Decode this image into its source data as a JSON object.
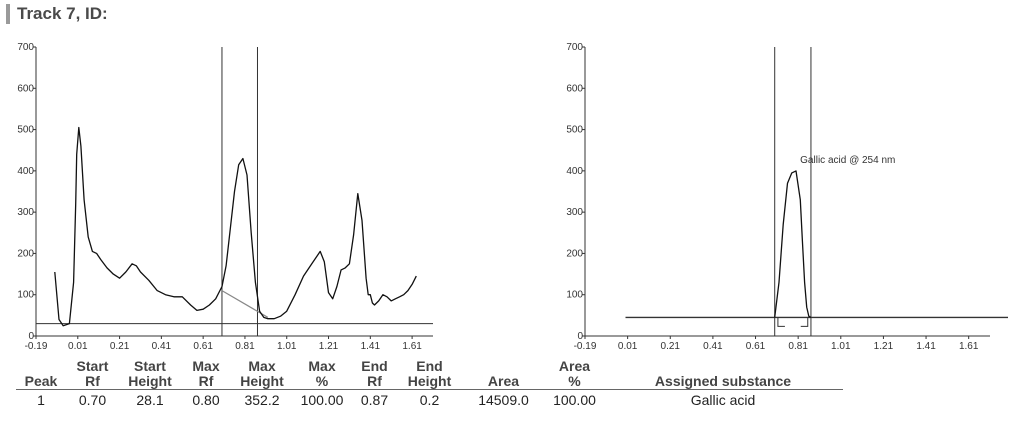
{
  "header": {
    "title": "Track 7, ID:"
  },
  "chart_data": [
    {
      "type": "line",
      "xlim": [
        -0.19,
        1.71
      ],
      "ylim": [
        0,
        700
      ],
      "x_ticks": [
        "-0.19",
        "0.01",
        "0.21",
        "0.41",
        "0.61",
        "0.81",
        "1.01",
        "1.21",
        "1.41",
        "1.61"
      ],
      "y_ticks": [
        "0",
        "100",
        "200",
        "300",
        "400",
        "500",
        "600",
        "700"
      ],
      "baseline_y": 30,
      "peak_window": [
        0.7,
        0.87
      ],
      "peak_baseline": [
        [
          0.7,
          110
        ],
        [
          0.92,
          45
        ]
      ],
      "series": [
        {
          "x": [
            -0.1,
            -0.08,
            -0.06,
            -0.03,
            -0.01,
            0.0,
            0.005,
            0.015,
            0.025,
            0.04,
            0.06,
            0.08,
            0.1,
            0.12,
            0.15,
            0.18,
            0.21,
            0.24,
            0.27,
            0.29,
            0.31,
            0.35,
            0.39,
            0.43,
            0.47,
            0.51,
            0.55,
            0.58,
            0.61,
            0.64,
            0.67,
            0.7,
            0.72,
            0.74,
            0.76,
            0.78,
            0.8,
            0.82,
            0.84,
            0.86,
            0.88,
            0.9,
            0.92,
            0.95,
            0.98,
            1.01,
            1.05,
            1.09,
            1.13,
            1.17,
            1.19,
            1.21,
            1.23,
            1.25,
            1.27,
            1.29,
            1.31,
            1.33,
            1.35,
            1.37,
            1.39,
            1.4,
            1.41,
            1.42,
            1.43,
            1.45,
            1.47,
            1.49,
            1.51,
            1.53,
            1.55,
            1.57,
            1.59,
            1.61,
            1.63
          ],
          "y": [
            155,
            40,
            25,
            30,
            130,
            320,
            440,
            505,
            460,
            330,
            240,
            205,
            200,
            185,
            165,
            150,
            140,
            155,
            175,
            170,
            155,
            135,
            110,
            100,
            95,
            95,
            75,
            62,
            65,
            75,
            90,
            120,
            170,
            260,
            350,
            415,
            430,
            390,
            250,
            130,
            60,
            45,
            42,
            42,
            48,
            60,
            100,
            145,
            175,
            205,
            180,
            105,
            90,
            120,
            160,
            165,
            175,
            245,
            345,
            280,
            140,
            100,
            100,
            80,
            75,
            85,
            100,
            95,
            85,
            90,
            95,
            100,
            110,
            125,
            145
          ]
        }
      ]
    },
    {
      "type": "line",
      "xlim": [
        -0.19,
        1.71
      ],
      "ylim": [
        0,
        700
      ],
      "x_ticks": [
        "-0.19",
        "0.01",
        "0.21",
        "0.41",
        "0.61",
        "0.81",
        "1.01",
        "1.21",
        "1.41",
        "1.61"
      ],
      "y_ticks": [
        "0",
        "100",
        "200",
        "300",
        "400",
        "500",
        "600",
        "700"
      ],
      "baseline_y": 45,
      "peak_window": [
        0.7,
        0.87
      ],
      "bracket": [
        0.715,
        0.855
      ],
      "annotation": "Gallic acid @ 254 nm",
      "annotation_at": [
        0.81,
        400
      ],
      "flat_range": [
        -0.19,
        1.61
      ],
      "series": [
        {
          "x": [
            0.7,
            0.72,
            0.74,
            0.76,
            0.78,
            0.8,
            0.82,
            0.83,
            0.84,
            0.85,
            0.86,
            0.87
          ],
          "y": [
            45,
            130,
            270,
            370,
            395,
            400,
            330,
            230,
            130,
            70,
            48,
            45
          ]
        }
      ]
    }
  ],
  "table": {
    "headers": [
      [
        "Peak"
      ],
      [
        "Start",
        "Rf"
      ],
      [
        "Start",
        "Height"
      ],
      [
        "Max",
        "Rf"
      ],
      [
        "Max",
        "Height"
      ],
      [
        "Max",
        "%"
      ],
      [
        "End",
        "Rf"
      ],
      [
        "End",
        "Height"
      ],
      [
        "Area"
      ],
      [
        "Area",
        "%"
      ],
      [
        "Assigned substance"
      ]
    ],
    "rows": [
      [
        "1",
        "0.70",
        "28.1",
        "0.80",
        "352.2",
        "100.00",
        "0.87",
        "0.2",
        "14509.0",
        "100.00",
        "Gallic acid"
      ]
    ]
  }
}
